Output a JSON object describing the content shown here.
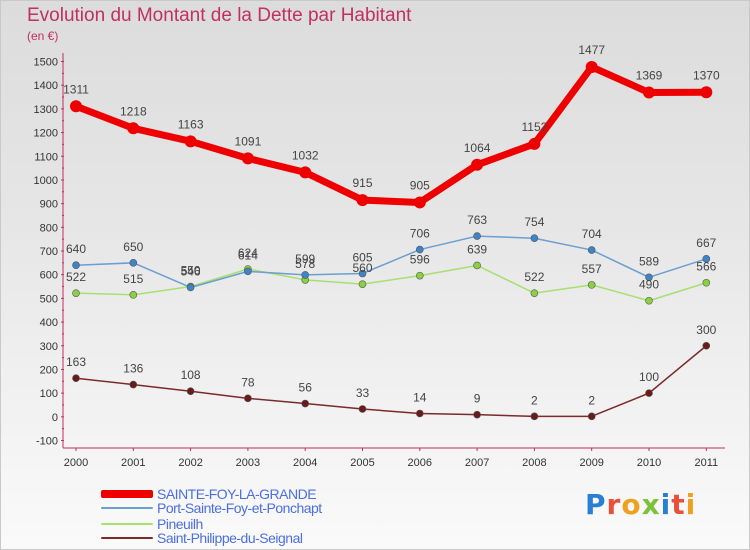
{
  "title": "Evolution du Montant de la Dette par Habitant",
  "unit_label": "(en €)",
  "logo": {
    "text": "Proxiti",
    "letters": [
      {
        "ch": "P",
        "color": "#2a7fd4"
      },
      {
        "ch": "r",
        "color": "#e8503a"
      },
      {
        "ch": "o",
        "color": "#f0a020"
      },
      {
        "ch": "x",
        "color": "#7cc23a"
      },
      {
        "ch": "i",
        "color": "#2a7fd4"
      },
      {
        "ch": "t",
        "color": "#e8503a"
      },
      {
        "ch": "i",
        "color": "#f0a020"
      }
    ]
  },
  "chart_data": {
    "type": "line",
    "title": "Evolution du Montant de la Dette par Habitant",
    "ylabel": "(en €)",
    "xlabel": "",
    "x": [
      "2000",
      "2001",
      "2002",
      "2003",
      "2004",
      "2005",
      "2006",
      "2007",
      "2008",
      "2009",
      "2010",
      "2011"
    ],
    "ylim": [
      -100,
      1500
    ],
    "yticks": [
      -100,
      0,
      100,
      200,
      300,
      400,
      500,
      600,
      700,
      800,
      900,
      1000,
      1100,
      1200,
      1300,
      1400,
      1500
    ],
    "grid": false,
    "legend_position": "bottom-left",
    "series": [
      {
        "name": "SAINTE-FOY-LA-GRANDE",
        "color": "#ee0000",
        "point_color": "#ee0000",
        "values": [
          1311,
          1218,
          1163,
          1091,
          1032,
          915,
          905,
          1064,
          1152,
          1477,
          1369,
          1370
        ]
      },
      {
        "name": "Port-Sainte-Foy-et-Ponchapt",
        "color": "#6a9fd0",
        "point_color": "#3d84c8",
        "values": [
          640,
          650,
          546,
          614,
          599,
          605,
          706,
          763,
          754,
          704,
          589,
          667
        ]
      },
      {
        "name": "Pineuilh",
        "color": "#a8e070",
        "point_color": "#8ad040",
        "values": [
          522,
          515,
          550,
          624,
          578,
          560,
          596,
          639,
          522,
          557,
          490,
          566
        ]
      },
      {
        "name": "Saint-Philippe-du-Seignal",
        "color": "#7a2a2a",
        "point_color": "#6a1a1a",
        "values": [
          163,
          136,
          108,
          78,
          56,
          33,
          14,
          9,
          2,
          2,
          100,
          300
        ]
      }
    ]
  }
}
